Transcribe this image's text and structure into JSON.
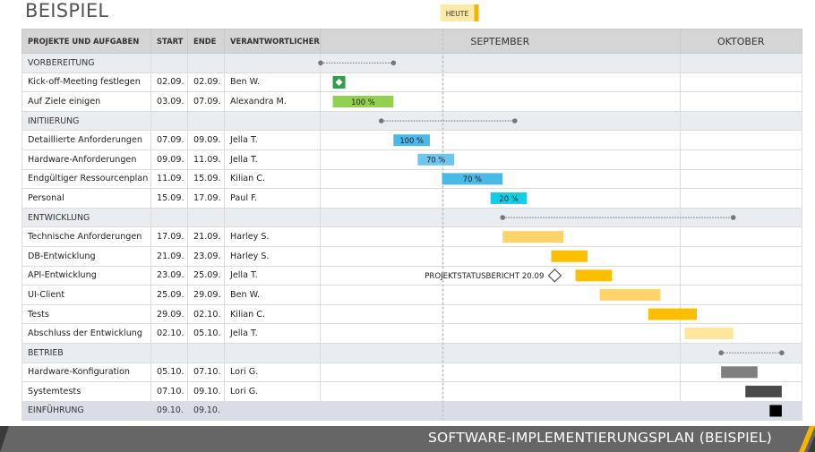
{
  "title": "BEISPIEL",
  "footer_title": "SOFTWARE-IMPLEMENTIERUNGSPLAN (BEISPIEL)",
  "today_label": "HEUTE",
  "milestone_label": "PROJEKTSTATUSBERICHT 20.09",
  "columns": {
    "task": "PROJEKTE UND AUFGABEN",
    "start": "START",
    "end": "ENDE",
    "owner": "VERANTWORTLICHER"
  },
  "months": [
    "SEPTEMBER",
    "OKTOBER"
  ],
  "colors": {
    "green": "#92d050",
    "milestone_green": "#2e9e48",
    "blue": "#4ab9e8",
    "blue_light": "#6fc6ec",
    "cyan": "#16cde6",
    "yellow_light": "#fdd46a",
    "yellow": "#fbbf00",
    "yellow_pale": "#fee69c",
    "gray": "#7f7f7f",
    "dark_gray": "#4a4a4a",
    "black": "#000000",
    "accent": "#f5b400"
  },
  "rows": [
    {
      "type": "phase",
      "task": "VORBEREITUNG",
      "start": "",
      "end": "",
      "owner": ""
    },
    {
      "type": "task",
      "task": "Kick-off-Meeting festlegen",
      "start": "02.09.",
      "end": "02.09.",
      "owner": "Ben W."
    },
    {
      "type": "task",
      "task": "Auf Ziele einigen",
      "start": "03.09.",
      "end": "07.09.",
      "owner": "Alexandra M."
    },
    {
      "type": "phase",
      "task": "INITIIERUNG",
      "start": "",
      "end": "",
      "owner": ""
    },
    {
      "type": "task",
      "task": "Detaillierte Anforderungen",
      "start": "07.09.",
      "end": "09.09.",
      "owner": "Jella T."
    },
    {
      "type": "task",
      "task": "Hardware-Anforderungen",
      "start": "09.09.",
      "end": "11.09.",
      "owner": "Jella T."
    },
    {
      "type": "task",
      "task": "Endgültiger Ressourcenplan",
      "start": "11.09.",
      "end": "15.09.",
      "owner": "Kilian C."
    },
    {
      "type": "task",
      "task": "Personal",
      "start": "15.09.",
      "end": "17.09.",
      "owner": "Paul F."
    },
    {
      "type": "phase",
      "task": "ENTWICKLUNG",
      "start": "",
      "end": "",
      "owner": ""
    },
    {
      "type": "task",
      "task": "Technische Anforderungen",
      "start": "17.09.",
      "end": "21.09.",
      "owner": "Harley S."
    },
    {
      "type": "task",
      "task": "DB-Entwicklung",
      "start": "21.09.",
      "end": "23.09.",
      "owner": "Harley S."
    },
    {
      "type": "task",
      "task": "API-Entwicklung",
      "start": "23.09.",
      "end": "25.09.",
      "owner": "Jella T."
    },
    {
      "type": "task",
      "task": "UI-Client",
      "start": "25.09.",
      "end": "29.09.",
      "owner": "Ben W."
    },
    {
      "type": "task",
      "task": "Tests",
      "start": "29.09.",
      "end": "02.10.",
      "owner": "Kilian C."
    },
    {
      "type": "task",
      "task": "Abschluss der Entwicklung",
      "start": "02.10.",
      "end": "05.10.",
      "owner": "Jella T."
    },
    {
      "type": "phase",
      "task": "BETRIEB",
      "start": "",
      "end": "",
      "owner": ""
    },
    {
      "type": "task",
      "task": "Hardware-Konfiguration",
      "start": "05.10.",
      "end": "07.10.",
      "owner": "Lori G."
    },
    {
      "type": "task",
      "task": "Systemtests",
      "start": "07.10.",
      "end": "09.10.",
      "owner": "Lori G."
    },
    {
      "type": "phase_last",
      "task": "EINFÜHRUNG",
      "start": "09.10.",
      "end": "09.10.",
      "owner": ""
    }
  ],
  "chart_data": {
    "type": "gantt",
    "timeline_start": "01.09.",
    "today": "11.09.",
    "month_boundary": "30.09.",
    "timeline_end": "10.10.",
    "milestone": {
      "label": "PROJEKTSTATUSBERICHT 20.09",
      "date": "20.09.",
      "row": 11
    },
    "items": [
      {
        "row": 0,
        "kind": "summary",
        "start": "01.09.",
        "end": "07.09."
      },
      {
        "row": 1,
        "kind": "milestone",
        "start": "02.09.",
        "end": "02.09.",
        "color": "milestone_green"
      },
      {
        "row": 2,
        "kind": "bar",
        "start": "02.09.",
        "end": "07.09.",
        "color": "green",
        "label": "100 %"
      },
      {
        "row": 3,
        "kind": "summary",
        "start": "06.09.",
        "end": "17.09."
      },
      {
        "row": 4,
        "kind": "bar",
        "start": "07.09.",
        "end": "10.09.",
        "color": "blue",
        "label": "100 %"
      },
      {
        "row": 5,
        "kind": "bar",
        "start": "09.09.",
        "end": "12.09.",
        "color": "blue_light",
        "label": "70 %"
      },
      {
        "row": 6,
        "kind": "bar",
        "start": "11.09.",
        "end": "16.09.",
        "color": "blue",
        "label": "70 %"
      },
      {
        "row": 7,
        "kind": "bar",
        "start": "15.09.",
        "end": "18.09.",
        "color": "cyan",
        "label": "20 %"
      },
      {
        "row": 8,
        "kind": "summary",
        "start": "16.09.",
        "end": "05.10."
      },
      {
        "row": 9,
        "kind": "bar",
        "start": "16.09.",
        "end": "21.09.",
        "color": "yellow_light"
      },
      {
        "row": 10,
        "kind": "bar",
        "start": "20.09.",
        "end": "23.09.",
        "color": "yellow"
      },
      {
        "row": 11,
        "kind": "bar",
        "start": "22.09.",
        "end": "25.09.",
        "color": "yellow"
      },
      {
        "row": 12,
        "kind": "bar",
        "start": "24.09.",
        "end": "29.09.",
        "color": "yellow_light"
      },
      {
        "row": 13,
        "kind": "bar",
        "start": "28.09.",
        "end": "02.10.",
        "color": "yellow"
      },
      {
        "row": 14,
        "kind": "bar",
        "start": "01.10.",
        "end": "05.10.",
        "color": "yellow_pale"
      },
      {
        "row": 15,
        "kind": "summary",
        "start": "04.10.",
        "end": "09.10."
      },
      {
        "row": 16,
        "kind": "bar",
        "start": "04.10.",
        "end": "07.10.",
        "color": "gray"
      },
      {
        "row": 17,
        "kind": "bar",
        "start": "06.10.",
        "end": "09.10.",
        "color": "dark_gray"
      },
      {
        "row": 18,
        "kind": "bar",
        "start": "08.10.",
        "end": "09.10.",
        "color": "black"
      }
    ]
  }
}
